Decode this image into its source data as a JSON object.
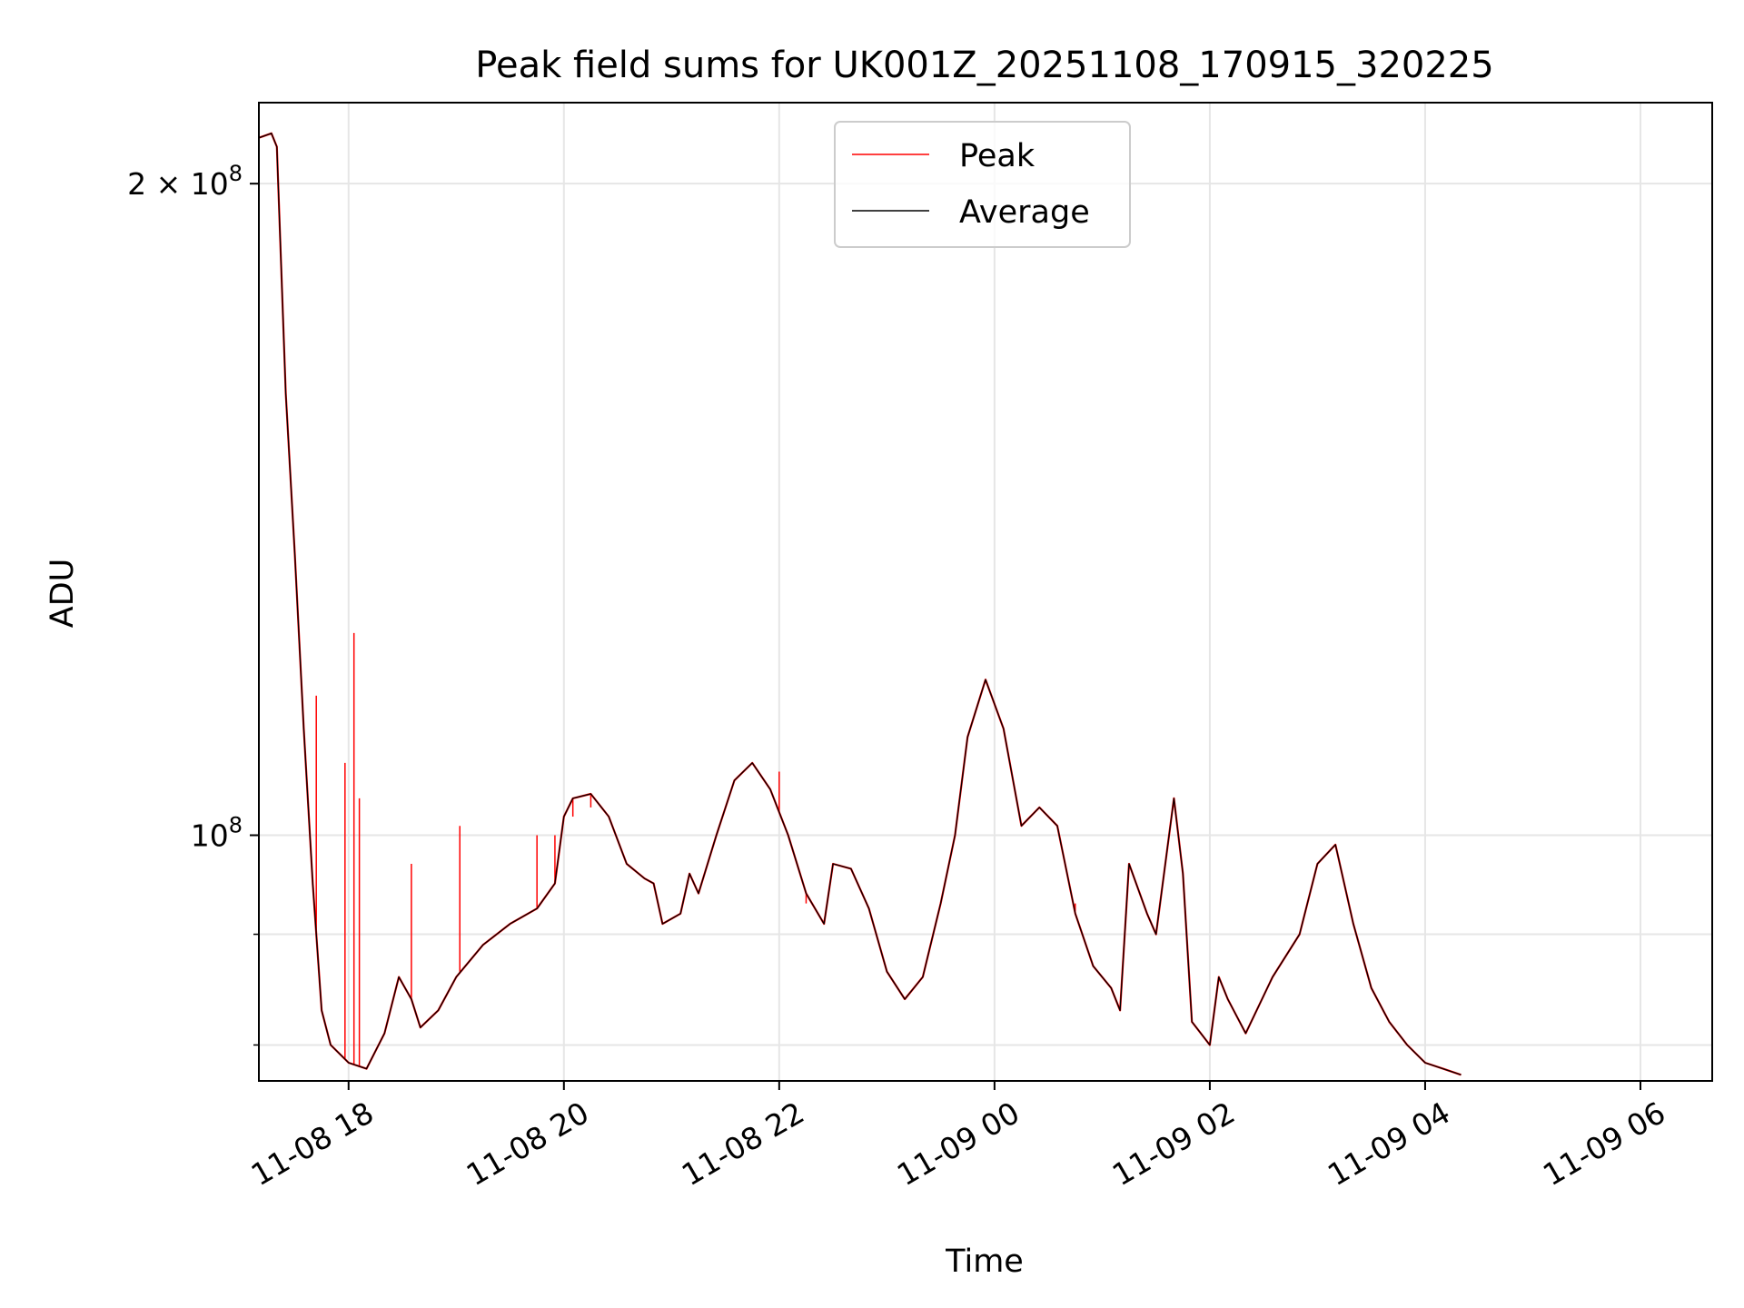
{
  "chart_data": {
    "type": "line",
    "title": "Peak field sums for UK001Z_20251108_170915_320225",
    "xlabel": "Time",
    "ylabel": "ADU",
    "yscale": "log",
    "xlim": [
      "2025-11-08 17:10",
      "2025-11-09 06:40"
    ],
    "ylim": [
      77000000,
      218000000
    ],
    "grid": true,
    "legend": "upper center",
    "x_ticks": [
      {
        "t": "2025-11-08 18:00",
        "label": "11-08 18"
      },
      {
        "t": "2025-11-08 20:00",
        "label": "11-08 20"
      },
      {
        "t": "2025-11-08 22:00",
        "label": "11-08 22"
      },
      {
        "t": "2025-11-09 00:00",
        "label": "11-09 00"
      },
      {
        "t": "2025-11-09 02:00",
        "label": "11-09 02"
      },
      {
        "t": "2025-11-09 04:00",
        "label": "11-09 04"
      },
      {
        "t": "2025-11-09 06:00",
        "label": "11-09 06"
      }
    ],
    "y_ticks": [
      {
        "value": 100000000,
        "mantissa": "",
        "base": "10",
        "exp": "8"
      },
      {
        "value": 200000000,
        "mantissa": "2 × ",
        "base": "10",
        "exp": "8"
      }
    ],
    "y_minor_ticks": [
      80000000,
      90000000
    ],
    "series": [
      {
        "name": "Average",
        "color": "#000000",
        "points": [
          [
            "2025-11-08 17:10",
            210000000
          ],
          [
            "2025-11-08 17:17",
            211000000
          ],
          [
            "2025-11-08 17:20",
            208000000
          ],
          [
            "2025-11-08 17:25",
            160000000
          ],
          [
            "2025-11-08 17:30",
            135000000
          ],
          [
            "2025-11-08 17:35",
            112000000
          ],
          [
            "2025-11-08 17:40",
            95000000
          ],
          [
            "2025-11-08 17:45",
            83000000
          ],
          [
            "2025-11-08 17:50",
            80000000
          ],
          [
            "2025-11-08 18:00",
            78500000
          ],
          [
            "2025-11-08 18:10",
            78000000
          ],
          [
            "2025-11-08 18:20",
            81000000
          ],
          [
            "2025-11-08 18:28",
            86000000
          ],
          [
            "2025-11-08 18:35",
            84000000
          ],
          [
            "2025-11-08 18:40",
            81500000
          ],
          [
            "2025-11-08 18:50",
            83000000
          ],
          [
            "2025-11-08 19:00",
            86000000
          ],
          [
            "2025-11-08 19:15",
            89000000
          ],
          [
            "2025-11-08 19:30",
            91000000
          ],
          [
            "2025-11-08 19:45",
            92500000
          ],
          [
            "2025-11-08 19:55",
            95000000
          ],
          [
            "2025-11-08 20:00",
            102000000
          ],
          [
            "2025-11-08 20:05",
            104000000
          ],
          [
            "2025-11-08 20:15",
            104500000
          ],
          [
            "2025-11-08 20:25",
            102000000
          ],
          [
            "2025-11-08 20:35",
            97000000
          ],
          [
            "2025-11-08 20:45",
            95500000
          ],
          [
            "2025-11-08 20:50",
            95000000
          ],
          [
            "2025-11-08 20:55",
            91000000
          ],
          [
            "2025-11-08 21:05",
            92000000
          ],
          [
            "2025-11-08 21:10",
            96000000
          ],
          [
            "2025-11-08 21:15",
            94000000
          ],
          [
            "2025-11-08 21:25",
            100000000
          ],
          [
            "2025-11-08 21:35",
            106000000
          ],
          [
            "2025-11-08 21:45",
            108000000
          ],
          [
            "2025-11-08 21:55",
            105000000
          ],
          [
            "2025-11-08 22:05",
            100000000
          ],
          [
            "2025-11-08 22:15",
            94000000
          ],
          [
            "2025-11-08 22:25",
            91000000
          ],
          [
            "2025-11-08 22:30",
            97000000
          ],
          [
            "2025-11-08 22:40",
            96500000
          ],
          [
            "2025-11-08 22:50",
            92500000
          ],
          [
            "2025-11-08 23:00",
            86500000
          ],
          [
            "2025-11-08 23:10",
            84000000
          ],
          [
            "2025-11-08 23:20",
            86000000
          ],
          [
            "2025-11-08 23:30",
            93000000
          ],
          [
            "2025-11-08 23:38",
            100000000
          ],
          [
            "2025-11-08 23:45",
            111000000
          ],
          [
            "2025-11-08 23:55",
            118000000
          ],
          [
            "2025-11-09 00:05",
            112000000
          ],
          [
            "2025-11-09 00:15",
            101000000
          ],
          [
            "2025-11-09 00:25",
            103000000
          ],
          [
            "2025-11-09 00:35",
            101000000
          ],
          [
            "2025-11-09 00:45",
            92000000
          ],
          [
            "2025-11-09 00:55",
            87000000
          ],
          [
            "2025-11-09 01:05",
            85000000
          ],
          [
            "2025-11-09 01:10",
            83000000
          ],
          [
            "2025-11-09 01:15",
            97000000
          ],
          [
            "2025-11-09 01:25",
            92000000
          ],
          [
            "2025-11-09 01:30",
            90000000
          ],
          [
            "2025-11-09 01:40",
            104000000
          ],
          [
            "2025-11-09 01:45",
            96000000
          ],
          [
            "2025-11-09 01:50",
            82000000
          ],
          [
            "2025-11-09 02:00",
            80000000
          ],
          [
            "2025-11-09 02:05",
            86000000
          ],
          [
            "2025-11-09 02:10",
            84000000
          ],
          [
            "2025-11-09 02:20",
            81000000
          ],
          [
            "2025-11-09 02:35",
            86000000
          ],
          [
            "2025-11-09 02:50",
            90000000
          ],
          [
            "2025-11-09 03:00",
            97000000
          ],
          [
            "2025-11-09 03:10",
            99000000
          ],
          [
            "2025-11-09 03:20",
            91000000
          ],
          [
            "2025-11-09 03:30",
            85000000
          ],
          [
            "2025-11-09 03:40",
            82000000
          ],
          [
            "2025-11-09 03:50",
            80000000
          ],
          [
            "2025-11-09 04:00",
            78500000
          ],
          [
            "2025-11-09 04:10",
            78000000
          ],
          [
            "2025-11-09 04:20",
            77500000
          ]
        ]
      },
      {
        "name": "Peak",
        "color": "#ff0000",
        "spikes": [
          [
            "2025-11-08 17:42",
            116000000
          ],
          [
            "2025-11-08 17:58",
            108000000
          ],
          [
            "2025-11-08 18:03",
            124000000
          ],
          [
            "2025-11-08 18:06",
            104000000
          ],
          [
            "2025-11-08 18:35",
            97000000
          ],
          [
            "2025-11-08 19:02",
            101000000
          ],
          [
            "2025-11-08 19:45",
            100000000
          ],
          [
            "2025-11-08 19:55",
            100000000
          ],
          [
            "2025-11-08 20:05",
            102000000
          ],
          [
            "2025-11-08 20:15",
            103000000
          ],
          [
            "2025-11-08 21:25",
            100000000
          ],
          [
            "2025-11-08 22:00",
            107000000
          ],
          [
            "2025-11-08 22:15",
            93000000
          ],
          [
            "2025-11-09 00:45",
            93000000
          ]
        ]
      }
    ]
  }
}
